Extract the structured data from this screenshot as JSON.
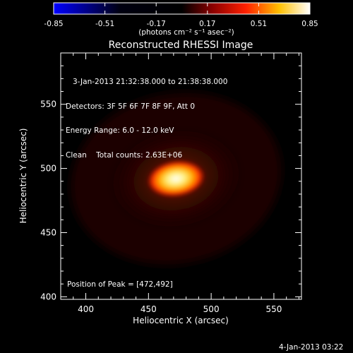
{
  "chart_data": {
    "type": "heatmap",
    "title": "Reconstructed RHESSI Image",
    "xlabel": "Heliocentric X (arcsec)",
    "ylabel": "Heliocentric Y (arcsec)",
    "xlim": [
      380,
      572
    ],
    "ylim": [
      398,
      590
    ],
    "xticks": [
      400,
      450,
      500,
      550
    ],
    "yticks": [
      400,
      450,
      500,
      550
    ],
    "colorbar": {
      "min": -0.85,
      "max": 0.85,
      "ticks": [
        "-0.85",
        "-0.51",
        "-0.17",
        "0.17",
        "0.51",
        "0.85"
      ],
      "unit_label": "(photons cm⁻² s⁻¹ asec⁻²)"
    },
    "peak": {
      "x": 472,
      "y": 492,
      "value": 0.85
    },
    "annotations": {
      "time_range": "3-Jan-2013 21:32:38.000 to 21:38:38.000",
      "detectors": "Detectors: 3F 5F 6F 7F 8F 9F, Att 0",
      "energy_range": "Energy Range: 6.0 - 12.0 keV",
      "method_counts": "Clean    Total counts: 2.63E+06",
      "peak_position": "Position of Peak = [472,492]"
    },
    "colors": {
      "background": "#000000",
      "colormap": [
        "#0000ff",
        "#000000",
        "#8b0000",
        "#ff2000",
        "#ffd000",
        "#ffffff"
      ]
    }
  },
  "footer": {
    "timestamp": "4-Jan-2013 03:22"
  }
}
